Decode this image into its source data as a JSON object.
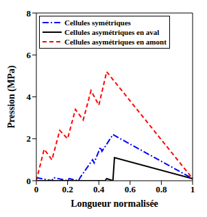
{
  "chart_data": {
    "type": "line",
    "x_label": "Longueur normalisée",
    "y_label": "Pression (MPa)",
    "xlim": [
      0,
      1
    ],
    "xticks": [
      0,
      0.2,
      0.4,
      0.6,
      0.8,
      1
    ],
    "ylim": [
      0,
      8
    ],
    "yticks": [
      0,
      2,
      4,
      6,
      8
    ],
    "grid": false,
    "legend": "upper left",
    "series": [
      {
        "name": "Cellules symétriques",
        "color": "#0000ff",
        "line_style": "dashdot",
        "x": [
          0,
          0.1,
          0.11,
          0.2,
          0.21,
          0.27,
          0.28,
          0.36,
          0.37,
          0.41,
          0.42,
          0.49,
          1
        ],
        "values": [
          0.15,
          0,
          0.15,
          0,
          0.1,
          0,
          0.15,
          1.0,
          0.85,
          1.6,
          1.4,
          2.2,
          0.1
        ]
      },
      {
        "name": "Cellules asymétriques en aval",
        "color": "#000000",
        "line_style": "solid",
        "x": [
          0,
          0.44,
          0.45,
          0.49,
          0.5,
          1
        ],
        "values": [
          0,
          0,
          0.1,
          0,
          1.1,
          0.1
        ]
      },
      {
        "name": "Cellules asymétriques en amont",
        "color": "#ff0000",
        "line_style": "dashed",
        "x": [
          0,
          0.05,
          0.1,
          0.15,
          0.2,
          0.25,
          0.3,
          0.35,
          0.4,
          0.45,
          1
        ],
        "values": [
          0,
          1.5,
          1.0,
          2.4,
          2.0,
          3.4,
          2.9,
          4.3,
          3.6,
          5.2,
          0.1
        ]
      }
    ]
  }
}
